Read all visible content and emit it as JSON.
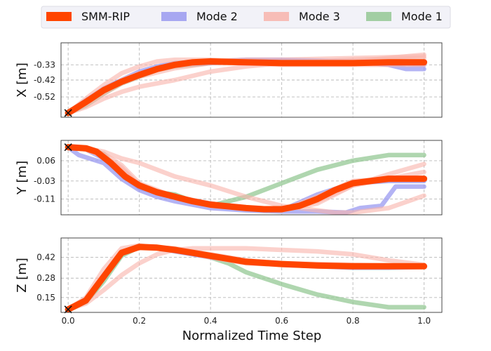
{
  "chart_data": {
    "type": "line",
    "xlabel": "Normalized Time Step",
    "xlim": [
      -0.02,
      1.05
    ],
    "xticks": [
      "0.0",
      "0.2",
      "0.4",
      "0.6",
      "0.8",
      "1.0"
    ],
    "xtick_values": [
      0.0,
      0.2,
      0.4,
      0.6,
      0.8,
      1.0
    ],
    "grid": true,
    "legend": {
      "placement": "top",
      "entries": [
        {
          "label": "SMM-RIP",
          "color": "#ff4500"
        },
        {
          "label": "Mode 2",
          "color": "#9a9af0"
        },
        {
          "label": "Mode 3",
          "color": "#f8b4ac"
        },
        {
          "label": "Mode 1",
          "color": "#94c894"
        }
      ]
    },
    "subplots": [
      {
        "ylabel": "X [m]",
        "ylim": [
          -0.64,
          -0.2
        ],
        "yticks": [
          "-0.33",
          "-0.42",
          "-0.52"
        ],
        "ytick_values": [
          -0.33,
          -0.42,
          -0.52
        ],
        "start_marker": [
          0.0,
          -0.615
        ],
        "series": [
          {
            "mode": "Mode 1",
            "x": [
              0,
              0.05,
              0.1,
              0.15,
              0.2,
              0.25,
              0.3,
              0.4,
              0.5,
              0.6,
              0.8,
              1.0
            ],
            "y": [
              -0.615,
              -0.57,
              -0.5,
              -0.44,
              -0.4,
              -0.36,
              -0.34,
              -0.32,
              -0.31,
              -0.31,
              -0.315,
              -0.315
            ]
          },
          {
            "mode": "Mode 2",
            "x": [
              0,
              0.05,
              0.1,
              0.15,
              0.2,
              0.25,
              0.3,
              0.4,
              0.5,
              0.6,
              0.8,
              0.85,
              0.9,
              0.95,
              1.0
            ],
            "y": [
              -0.615,
              -0.54,
              -0.47,
              -0.42,
              -0.37,
              -0.34,
              -0.32,
              -0.31,
              -0.3,
              -0.3,
              -0.31,
              -0.32,
              -0.33,
              -0.355,
              -0.355
            ]
          },
          {
            "mode": "Mode 2",
            "x": [
              0,
              0.05,
              0.1,
              0.15,
              0.2,
              0.25,
              0.3,
              0.4,
              0.5,
              0.6,
              0.8,
              1.0
            ],
            "y": [
              -0.615,
              -0.55,
              -0.48,
              -0.43,
              -0.38,
              -0.35,
              -0.33,
              -0.32,
              -0.31,
              -0.31,
              -0.315,
              -0.33
            ]
          },
          {
            "mode": "Mode 3",
            "x": [
              0,
              0.05,
              0.1,
              0.15,
              0.2,
              0.3,
              0.4,
              0.5,
              0.6,
              0.7,
              0.8,
              0.9,
              1.0
            ],
            "y": [
              -0.615,
              -0.58,
              -0.53,
              -0.49,
              -0.46,
              -0.42,
              -0.37,
              -0.34,
              -0.32,
              -0.31,
              -0.3,
              -0.295,
              -0.29
            ]
          },
          {
            "mode": "Mode 3",
            "x": [
              0,
              0.05,
              0.1,
              0.15,
              0.2,
              0.25,
              0.3,
              0.4,
              0.5,
              0.6,
              0.8,
              1.0
            ],
            "y": [
              -0.615,
              -0.53,
              -0.45,
              -0.38,
              -0.34,
              -0.31,
              -0.3,
              -0.3,
              -0.31,
              -0.32,
              -0.31,
              -0.27
            ]
          },
          {
            "mode": "Mode 3",
            "x": [
              0,
              0.05,
              0.1,
              0.15,
              0.2,
              0.3,
              0.4,
              0.5,
              0.6,
              0.8,
              1.0
            ],
            "y": [
              -0.615,
              -0.55,
              -0.49,
              -0.42,
              -0.38,
              -0.34,
              -0.31,
              -0.3,
              -0.3,
              -0.29,
              -0.28
            ]
          },
          {
            "mode": "Mode 3",
            "x": [
              0,
              0.05,
              0.1,
              0.15,
              0.2,
              0.3,
              0.4,
              0.5,
              0.6,
              0.8,
              1.0
            ],
            "y": [
              -0.615,
              -0.56,
              -0.5,
              -0.44,
              -0.4,
              -0.35,
              -0.32,
              -0.32,
              -0.33,
              -0.33,
              -0.33
            ]
          },
          {
            "mode": "SMM-RIP",
            "x": [
              0,
              0.05,
              0.1,
              0.15,
              0.2,
              0.25,
              0.3,
              0.35,
              0.4,
              0.5,
              0.6,
              0.7,
              0.8,
              0.9,
              1.0
            ],
            "y": [
              -0.615,
              -0.55,
              -0.48,
              -0.43,
              -0.39,
              -0.355,
              -0.33,
              -0.315,
              -0.31,
              -0.315,
              -0.32,
              -0.32,
              -0.32,
              -0.315,
              -0.315
            ]
          }
        ]
      },
      {
        "ylabel": "Y [m]",
        "ylim": [
          -0.18,
          0.15
        ],
        "yticks": [
          "0.06",
          "-0.03",
          "-0.11"
        ],
        "ytick_values": [
          0.06,
          -0.03,
          -0.11
        ],
        "start_marker": [
          0.0,
          0.12
        ],
        "series": [
          {
            "mode": "Mode 1",
            "x": [
              0,
              0.05,
              0.1,
              0.15,
              0.2,
              0.25,
              0.3,
              0.35,
              0.4,
              0.5,
              0.6,
              0.7,
              0.8,
              0.9,
              1.0
            ],
            "y": [
              0.12,
              0.115,
              0.09,
              0.0,
              -0.05,
              -0.08,
              -0.09,
              -0.12,
              -0.14,
              -0.1,
              -0.04,
              0.02,
              0.06,
              0.085,
              0.085
            ]
          },
          {
            "mode": "Mode 2",
            "x": [
              0,
              0.03,
              0.1,
              0.15,
              0.2,
              0.25,
              0.3,
              0.4,
              0.5,
              0.6,
              0.7,
              0.78,
              0.82,
              0.88,
              0.92,
              1.0
            ],
            "y": [
              0.12,
              0.085,
              0.05,
              -0.02,
              -0.07,
              -0.1,
              -0.12,
              -0.15,
              -0.16,
              -0.165,
              -0.165,
              -0.17,
              -0.15,
              -0.14,
              -0.055,
              -0.055
            ]
          },
          {
            "mode": "Mode 2",
            "x": [
              0,
              0.05,
              0.1,
              0.15,
              0.2,
              0.3,
              0.4,
              0.5,
              0.6,
              0.7,
              0.8,
              0.9,
              1.0
            ],
            "y": [
              0.12,
              0.11,
              0.07,
              0.0,
              -0.06,
              -0.1,
              -0.13,
              -0.15,
              -0.16,
              -0.09,
              -0.04,
              -0.03,
              -0.03
            ]
          },
          {
            "mode": "Mode 3",
            "x": [
              0,
              0.05,
              0.1,
              0.15,
              0.2,
              0.25,
              0.3,
              0.4,
              0.5,
              0.6,
              0.7,
              0.75,
              0.8,
              0.9,
              1.0
            ],
            "y": [
              0.12,
              0.115,
              0.1,
              0.07,
              0.05,
              0.02,
              -0.01,
              -0.05,
              -0.1,
              -0.14,
              -0.16,
              -0.17,
              -0.17,
              -0.15,
              -0.095
            ]
          },
          {
            "mode": "Mode 3",
            "x": [
              0,
              0.05,
              0.1,
              0.15,
              0.2,
              0.3,
              0.4,
              0.5,
              0.6,
              0.7,
              0.8,
              0.9,
              1.0
            ],
            "y": [
              0.12,
              0.11,
              0.09,
              0.04,
              -0.04,
              -0.1,
              -0.13,
              -0.15,
              -0.16,
              -0.1,
              -0.03,
              -0.02,
              -0.02
            ]
          },
          {
            "mode": "Mode 3",
            "x": [
              0,
              0.05,
              0.1,
              0.15,
              0.2,
              0.3,
              0.4,
              0.5,
              0.6,
              0.7,
              0.8,
              0.9,
              1.0
            ],
            "y": [
              0.12,
              0.11,
              0.08,
              0.02,
              -0.05,
              -0.1,
              -0.14,
              -0.15,
              -0.16,
              -0.12,
              -0.05,
              0.0,
              0.045
            ]
          },
          {
            "mode": "Mode 3",
            "x": [
              0,
              0.05,
              0.1,
              0.15,
              0.2,
              0.3,
              0.4,
              0.5,
              0.6,
              0.7,
              0.8,
              0.9,
              1.0
            ],
            "y": [
              0.12,
              0.11,
              0.08,
              0.03,
              -0.05,
              -0.1,
              -0.13,
              -0.15,
              -0.16,
              -0.13,
              -0.05,
              -0.02,
              0.01
            ]
          },
          {
            "mode": "SMM-RIP",
            "x": [
              0,
              0.05,
              0.08,
              0.12,
              0.16,
              0.2,
              0.25,
              0.3,
              0.35,
              0.4,
              0.5,
              0.55,
              0.6,
              0.65,
              0.7,
              0.75,
              0.8,
              0.9,
              1.0
            ],
            "y": [
              0.12,
              0.115,
              0.1,
              0.05,
              -0.01,
              -0.05,
              -0.08,
              -0.1,
              -0.12,
              -0.135,
              -0.15,
              -0.155,
              -0.155,
              -0.14,
              -0.11,
              -0.07,
              -0.04,
              -0.02,
              -0.02
            ]
          }
        ]
      },
      {
        "ylabel": "Z [m]",
        "ylim": [
          0.05,
          0.55
        ],
        "yticks": [
          "0.42",
          "0.28",
          "0.15"
        ],
        "ytick_values": [
          0.42,
          0.28,
          0.15
        ],
        "start_marker": [
          0.0,
          0.07
        ],
        "series": [
          {
            "mode": "Mode 1",
            "x": [
              0,
              0.05,
              0.1,
              0.15,
              0.2,
              0.25,
              0.3,
              0.35,
              0.4,
              0.45,
              0.5,
              0.6,
              0.7,
              0.8,
              0.9,
              1.0
            ],
            "y": [
              0.07,
              0.12,
              0.26,
              0.43,
              0.49,
              0.49,
              0.47,
              0.45,
              0.42,
              0.38,
              0.32,
              0.24,
              0.17,
              0.12,
              0.085,
              0.085
            ]
          },
          {
            "mode": "Mode 2",
            "x": [
              0,
              0.05,
              0.1,
              0.15,
              0.2,
              0.25,
              0.3,
              0.4,
              0.5,
              0.6,
              0.7,
              0.8,
              0.9,
              1.0
            ],
            "y": [
              0.07,
              0.14,
              0.3,
              0.45,
              0.49,
              0.48,
              0.46,
              0.42,
              0.39,
              0.37,
              0.36,
              0.35,
              0.35,
              0.355
            ]
          },
          {
            "mode": "Mode 3",
            "x": [
              0,
              0.05,
              0.1,
              0.15,
              0.2,
              0.25,
              0.3,
              0.35,
              0.4,
              0.5,
              0.6,
              0.7,
              0.8,
              0.9,
              1.0
            ],
            "y": [
              0.07,
              0.11,
              0.2,
              0.3,
              0.38,
              0.44,
              0.47,
              0.48,
              0.48,
              0.48,
              0.47,
              0.46,
              0.44,
              0.4,
              0.37
            ]
          },
          {
            "mode": "Mode 3",
            "x": [
              0,
              0.05,
              0.1,
              0.15,
              0.2,
              0.3,
              0.4,
              0.5,
              0.6,
              0.8,
              1.0
            ],
            "y": [
              0.07,
              0.15,
              0.34,
              0.48,
              0.5,
              0.47,
              0.42,
              0.38,
              0.37,
              0.36,
              0.36
            ]
          },
          {
            "mode": "Mode 3",
            "x": [
              0,
              0.05,
              0.1,
              0.15,
              0.2,
              0.3,
              0.4,
              0.5,
              0.6,
              0.8,
              1.0
            ],
            "y": [
              0.07,
              0.13,
              0.3,
              0.46,
              0.49,
              0.48,
              0.44,
              0.4,
              0.38,
              0.37,
              0.36
            ]
          },
          {
            "mode": "SMM-RIP",
            "x": [
              0,
              0.05,
              0.1,
              0.15,
              0.2,
              0.25,
              0.3,
              0.35,
              0.4,
              0.45,
              0.5,
              0.6,
              0.7,
              0.8,
              0.9,
              1.0
            ],
            "y": [
              0.07,
              0.13,
              0.29,
              0.45,
              0.49,
              0.485,
              0.47,
              0.45,
              0.43,
              0.41,
              0.39,
              0.375,
              0.365,
              0.36,
              0.36,
              0.36
            ]
          }
        ]
      }
    ]
  }
}
